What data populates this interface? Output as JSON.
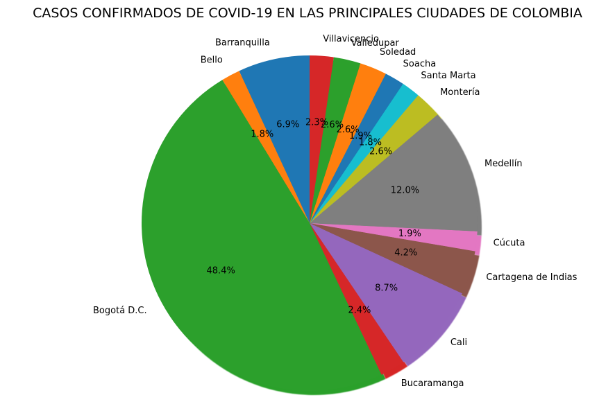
{
  "chart_data": {
    "type": "pie",
    "title": "CASOS CONFIRMADOS DE COVID-19 EN LAS PRINCIPALES CIUDADES DE COLOMBIA",
    "start_angle_deg": 90,
    "direction": "counterclockwise",
    "shadow": true,
    "legend": "none",
    "slices": [
      {
        "label": "Barranquilla",
        "value": 6.9,
        "pct_label": "6.9%",
        "color": "#1f77b4"
      },
      {
        "label": "Bello",
        "value": 1.8,
        "pct_label": "1.8%",
        "color": "#ff7f0e"
      },
      {
        "label": "Bogotá D.C.",
        "value": 48.4,
        "pct_label": "48.4%",
        "color": "#2ca02c"
      },
      {
        "label": "Bucaramanga",
        "value": 2.4,
        "pct_label": "2.4%",
        "color": "#d62728"
      },
      {
        "label": "Cali",
        "value": 8.7,
        "pct_label": "8.7%",
        "color": "#9467bd"
      },
      {
        "label": "Cartagena de Indias",
        "value": 4.2,
        "pct_label": "4.2%",
        "color": "#8c564b"
      },
      {
        "label": "Cúcuta",
        "value": 1.9,
        "pct_label": "1.9%",
        "color": "#e377c2"
      },
      {
        "label": "Medellín",
        "value": 12.0,
        "pct_label": "12.0%",
        "color": "#7f7f7f"
      },
      {
        "label": "Montería",
        "value": 2.6,
        "pct_label": "2.6%",
        "color": "#bcbd22"
      },
      {
        "label": "Santa Marta",
        "value": 1.8,
        "pct_label": "1.8%",
        "color": "#17becf"
      },
      {
        "label": "Soacha",
        "value": 1.9,
        "pct_label": "1.9%",
        "color": "#1f77b4"
      },
      {
        "label": "Soledad",
        "value": 2.6,
        "pct_label": "2.6%",
        "color": "#ff7f0e"
      },
      {
        "label": "Valledupar",
        "value": 2.6,
        "pct_label": "2.6%",
        "color": "#2ca02c"
      },
      {
        "label": "Villavicencio",
        "value": 2.3,
        "pct_label": "2.3%",
        "color": "#d62728"
      }
    ]
  }
}
